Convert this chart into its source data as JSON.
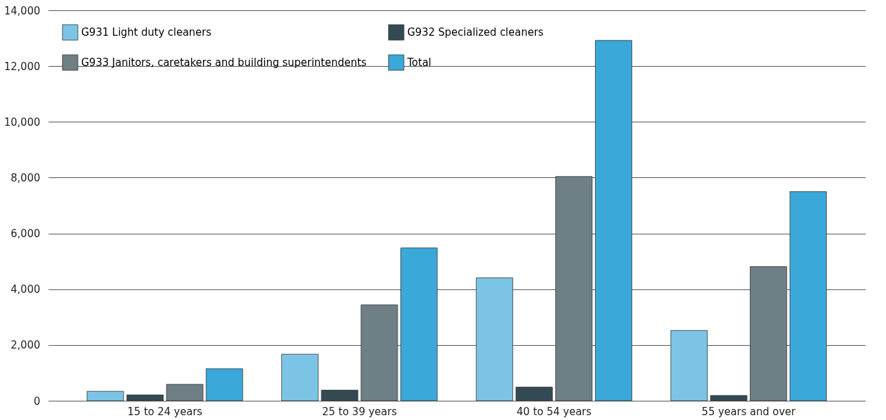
{
  "chart_data": {
    "type": "bar",
    "categories": [
      "15 to 24 years",
      "25 to 39 years",
      "40 to 54 years",
      "55 years and over"
    ],
    "series": [
      {
        "name": "G931 Light duty cleaners",
        "color": "#7cc4e6",
        "values": [
          340,
          1670,
          4410,
          2520
        ]
      },
      {
        "name": "G932 Specialized cleaners",
        "color": "#344a53",
        "values": [
          210,
          380,
          490,
          190
        ]
      },
      {
        "name": "G933 Janitors, caretakers and building superintendents",
        "color": "#6f7f86",
        "values": [
          590,
          3440,
          8040,
          4810
        ]
      },
      {
        "name": "Total",
        "color": "#3aa8d8",
        "values": [
          1150,
          5480,
          12920,
          7500
        ]
      }
    ],
    "ylim": [
      0,
      14000
    ],
    "yticks": [
      0,
      {
        "value": 2000,
        "label": "2,000"
      },
      {
        "value": 4000,
        "label": "4,000"
      },
      {
        "value": 6000,
        "label": "6,000"
      },
      {
        "value": 8000,
        "label": "8,000"
      },
      {
        "value": 10000,
        "label": "10,000"
      },
      {
        "value": 12000,
        "label": "12,000"
      },
      {
        "value": 14000,
        "label": "14,000"
      }
    ],
    "grid": "y",
    "legend": "top left"
  }
}
